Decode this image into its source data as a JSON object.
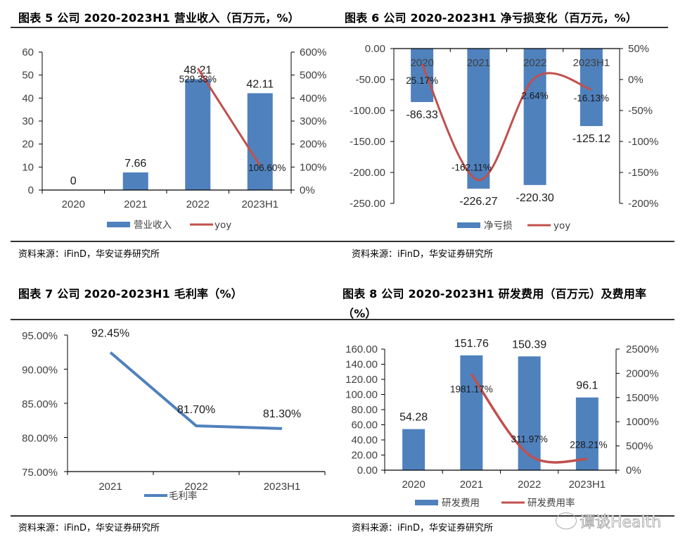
{
  "panels": [
    {
      "title": "图表 5 公司 2020-2023H1 营业收入（百万元，%）",
      "source": "资料来源：iFinD，华安证券研究所"
    },
    {
      "title": "图表 6 公司 2020-2023H1 净亏损变化（百万元，%）",
      "source": "资料来源：iFinD，华安证券研究所"
    },
    {
      "title": "图表 7 公司 2020-2023H1 毛利率（%）",
      "source": "资料来源：iFinD，华安证券研究所"
    },
    {
      "title_line1": "图表 8 公司 2020-2023H1 研发费用（百万元）及费用率",
      "title_line2": "（%）",
      "source": "资料来源：iFinD，华安证券研究所"
    }
  ],
  "watermark": "谭谈Health",
  "colors": {
    "bar": "#4f81bd",
    "line_red": "#c0504d",
    "line_blue": "#4f81bd"
  },
  "chart_data": [
    {
      "type": "bar+line",
      "title": "图表 5 公司 2020-2023H1 营业收入（百万元，%）",
      "categories": [
        "2020",
        "2021",
        "2022",
        "2023H1"
      ],
      "series": [
        {
          "name": "营业收入",
          "type": "bar",
          "axis": "left",
          "values": [
            0,
            7.66,
            48.21,
            42.11
          ],
          "labels": [
            "0",
            "7.66",
            "48.21",
            "42.11"
          ]
        },
        {
          "name": "yoy",
          "type": "line",
          "axis": "right",
          "values": [
            null,
            null,
            529.33,
            106.6
          ],
          "labels": [
            "",
            "",
            "529.33%",
            "106.60%"
          ]
        }
      ],
      "ylim": [
        0,
        60
      ],
      "yticks": [
        "0",
        "10",
        "20",
        "30",
        "40",
        "50",
        "60"
      ],
      "y2lim": [
        0,
        600
      ],
      "y2ticks": [
        "0%",
        "100%",
        "200%",
        "300%",
        "400%",
        "500%",
        "600%"
      ],
      "legend": "bottom"
    },
    {
      "type": "bar+line",
      "title": "图表 6 公司 2020-2023H1 净亏损变化（百万元，%）",
      "categories": [
        "2020",
        "2021",
        "2022",
        "2023H1"
      ],
      "series": [
        {
          "name": "净亏损",
          "type": "bar",
          "axis": "left",
          "values": [
            -86.33,
            -226.27,
            -220.3,
            -125.12
          ],
          "labels": [
            "-86.33",
            "-226.27",
            "-220.30",
            "-125.12"
          ]
        },
        {
          "name": "yoy",
          "type": "line",
          "smooth": true,
          "axis": "right",
          "values": [
            25.17,
            -162.11,
            2.64,
            -16.13
          ],
          "labels": [
            "25.17%",
            "-162.11%",
            "2.64%",
            "-16.13%"
          ]
        }
      ],
      "ylim": [
        -250,
        0
      ],
      "yticks": [
        "-250.00",
        "-200.00",
        "-150.00",
        "-100.00",
        "-50.00",
        "0.00"
      ],
      "y2lim": [
        -200,
        50
      ],
      "y2ticks": [
        "-200%",
        "-150%",
        "-100%",
        "-50%",
        "0%",
        "50%"
      ],
      "legend": "bottom"
    },
    {
      "type": "line",
      "title": "图表 7 公司 2020-2023H1 毛利率（%）",
      "categories": [
        "2021",
        "2022",
        "2023H1"
      ],
      "series": [
        {
          "name": "毛利率",
          "values": [
            92.45,
            81.7,
            81.3
          ],
          "labels": [
            "92.45%",
            "81.70%",
            "81.30%"
          ]
        }
      ],
      "ylim": [
        75,
        95
      ],
      "yticks": [
        "75.00%",
        "80.00%",
        "85.00%",
        "90.00%",
        "95.00%"
      ],
      "legend": "bottom"
    },
    {
      "type": "bar+line",
      "title": "图表 8 公司 2020-2023H1 研发费用（百万元）及费用率（%）",
      "categories": [
        "2020",
        "2021",
        "2022",
        "2023H1"
      ],
      "series": [
        {
          "name": "研发费用",
          "type": "bar",
          "axis": "left",
          "values": [
            54.28,
            151.76,
            150.39,
            96.1
          ],
          "labels": [
            "54.28",
            "151.76",
            "150.39",
            "96.1"
          ]
        },
        {
          "name": "研发费用率",
          "type": "line",
          "smooth": true,
          "axis": "right",
          "values": [
            null,
            1981.17,
            311.97,
            228.21
          ],
          "labels": [
            "",
            "1981.17%",
            "311.97%",
            "228.21%"
          ]
        }
      ],
      "ylim": [
        0,
        160
      ],
      "yticks": [
        "0.00",
        "20.00",
        "40.00",
        "60.00",
        "80.00",
        "100.00",
        "120.00",
        "140.00",
        "160.00"
      ],
      "y2lim": [
        0,
        2500
      ],
      "y2ticks": [
        "0%",
        "500%",
        "1000%",
        "1500%",
        "2000%",
        "2500%"
      ],
      "legend": "bottom"
    }
  ]
}
